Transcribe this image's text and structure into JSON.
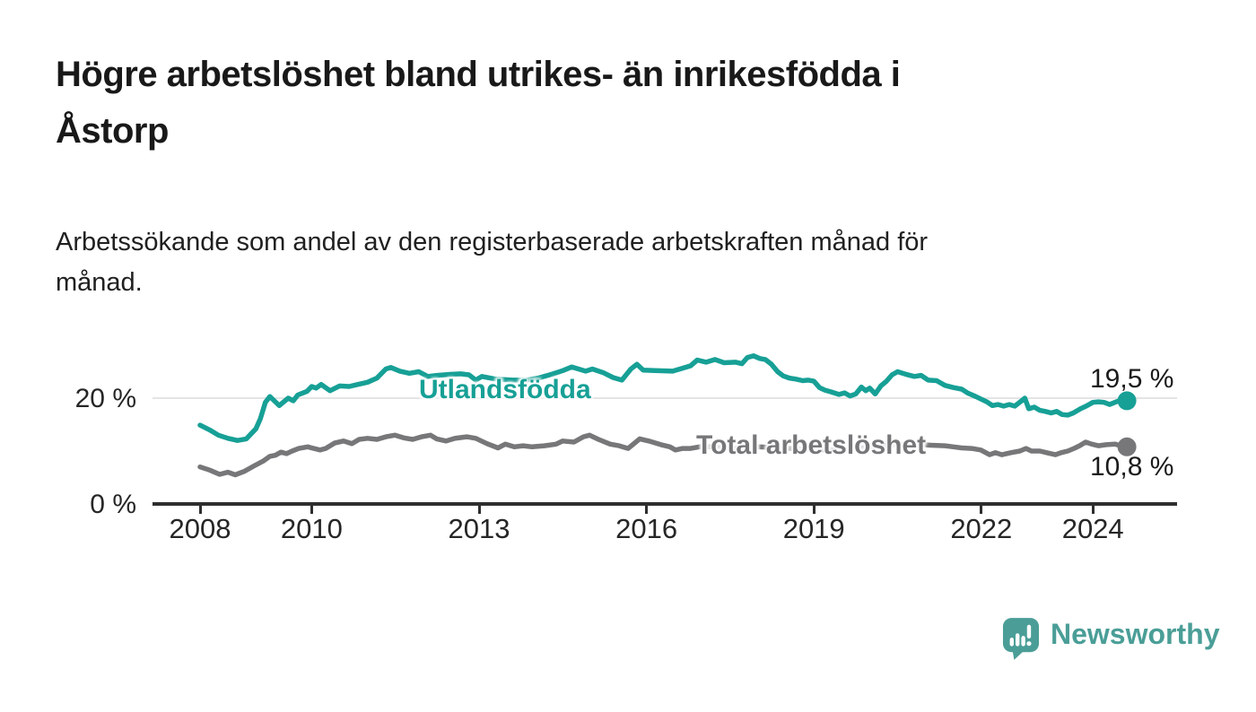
{
  "header": {
    "title": "Högre arbetslöshet bland utrikes- än inrikesfödda i Åstorp",
    "title_lines": [
      "Högre arbetslöshet bland utrikes- än inrikesfödda i",
      "Åstorp"
    ],
    "subtitle": "Arbetssökande som andel av den registerbaserade arbetskraften månad för månad.",
    "subtitle_lines": [
      "Arbetssökande som andel av den registerbaserade arbetskraften månad för",
      "månad."
    ]
  },
  "colors": {
    "foreign_born_line": "#17a096",
    "total_line": "#77777a",
    "axis": "#2e2e2e",
    "gridline": "#e4e4e4",
    "text": "#191919",
    "brand_teal": "#4a9e97"
  },
  "chart_data": {
    "type": "line",
    "title": "Högre arbetslöshet bland utrikes- än inrikesfödda i Åstorp",
    "subtitle": "Arbetssökande som andel av den registerbaserade arbetskraften månad för månad.",
    "xlabel": "",
    "ylabel": "",
    "x_unit": "decimal_year",
    "y_unit": "percent",
    "xlim": [
      2007.2,
      2025.5
    ],
    "ylim": [
      0,
      30
    ],
    "grid": "horizontal-at-20-only",
    "legend_position": "inline-labels-on-lines",
    "x_ticks": [
      2008,
      2010,
      2013,
      2016,
      2019,
      2022,
      2024
    ],
    "y_ticks": [
      {
        "value": 20,
        "label": "20 %",
        "gridline": true
      },
      {
        "value": 0,
        "label": "0 %",
        "gridline": false
      }
    ],
    "series": [
      {
        "name": "Utlandsfödda",
        "color": "#17a096",
        "end_label": "19,5 %",
        "end_value": 19.5,
        "points": [
          [
            2008.0,
            14.9
          ],
          [
            2008.17,
            14.0
          ],
          [
            2008.33,
            13.0
          ],
          [
            2008.5,
            12.4
          ],
          [
            2008.67,
            12.0
          ],
          [
            2008.83,
            12.3
          ],
          [
            2009.0,
            14.2
          ],
          [
            2009.08,
            16.1
          ],
          [
            2009.17,
            19.2
          ],
          [
            2009.25,
            20.3
          ],
          [
            2009.42,
            18.6
          ],
          [
            2009.58,
            20.0
          ],
          [
            2009.67,
            19.5
          ],
          [
            2009.75,
            20.6
          ],
          [
            2009.92,
            21.3
          ],
          [
            2010.0,
            22.2
          ],
          [
            2010.08,
            21.9
          ],
          [
            2010.17,
            22.6
          ],
          [
            2010.33,
            21.4
          ],
          [
            2010.5,
            22.3
          ],
          [
            2010.67,
            22.2
          ],
          [
            2010.83,
            22.6
          ],
          [
            2011.0,
            23.0
          ],
          [
            2011.17,
            23.8
          ],
          [
            2011.33,
            25.5
          ],
          [
            2011.42,
            25.8
          ],
          [
            2011.58,
            25.1
          ],
          [
            2011.75,
            24.7
          ],
          [
            2011.92,
            25.0
          ],
          [
            2012.08,
            24.1
          ],
          [
            2012.25,
            24.3
          ],
          [
            2012.5,
            24.5
          ],
          [
            2012.67,
            24.6
          ],
          [
            2012.82,
            24.4
          ],
          [
            2012.94,
            23.4
          ],
          [
            2013.05,
            24.1
          ],
          [
            2013.3,
            23.6
          ],
          [
            2013.6,
            23.4
          ],
          [
            2013.85,
            23.4
          ],
          [
            2014.06,
            23.8
          ],
          [
            2014.3,
            24.5
          ],
          [
            2014.5,
            25.2
          ],
          [
            2014.66,
            25.9
          ],
          [
            2014.91,
            25.1
          ],
          [
            2015.03,
            25.5
          ],
          [
            2015.23,
            24.8
          ],
          [
            2015.4,
            23.9
          ],
          [
            2015.56,
            23.4
          ],
          [
            2015.72,
            25.5
          ],
          [
            2015.83,
            26.4
          ],
          [
            2015.94,
            25.3
          ],
          [
            2016.15,
            25.2
          ],
          [
            2016.47,
            25.1
          ],
          [
            2016.79,
            26.1
          ],
          [
            2016.91,
            27.2
          ],
          [
            2017.07,
            26.8
          ],
          [
            2017.23,
            27.3
          ],
          [
            2017.39,
            26.7
          ],
          [
            2017.6,
            26.8
          ],
          [
            2017.71,
            26.5
          ],
          [
            2017.81,
            27.7
          ],
          [
            2017.92,
            28.0
          ],
          [
            2018.03,
            27.5
          ],
          [
            2018.13,
            27.3
          ],
          [
            2018.24,
            26.4
          ],
          [
            2018.35,
            25.0
          ],
          [
            2018.45,
            24.2
          ],
          [
            2018.56,
            23.8
          ],
          [
            2018.68,
            23.6
          ],
          [
            2018.8,
            23.3
          ],
          [
            2018.9,
            23.4
          ],
          [
            2019.0,
            23.2
          ],
          [
            2019.1,
            22.0
          ],
          [
            2019.2,
            21.5
          ],
          [
            2019.3,
            21.2
          ],
          [
            2019.45,
            20.7
          ],
          [
            2019.55,
            21.0
          ],
          [
            2019.65,
            20.4
          ],
          [
            2019.75,
            20.8
          ],
          [
            2019.85,
            22.1
          ],
          [
            2019.93,
            21.4
          ],
          [
            2020.0,
            21.9
          ],
          [
            2020.1,
            20.8
          ],
          [
            2020.2,
            22.3
          ],
          [
            2020.3,
            23.2
          ],
          [
            2020.4,
            24.4
          ],
          [
            2020.5,
            25.0
          ],
          [
            2020.65,
            24.5
          ],
          [
            2020.8,
            24.1
          ],
          [
            2020.92,
            24.3
          ],
          [
            2021.05,
            23.4
          ],
          [
            2021.2,
            23.3
          ],
          [
            2021.35,
            22.4
          ],
          [
            2021.5,
            22.0
          ],
          [
            2021.65,
            21.7
          ],
          [
            2021.75,
            21.0
          ],
          [
            2021.9,
            20.3
          ],
          [
            2022.0,
            19.8
          ],
          [
            2022.1,
            19.3
          ],
          [
            2022.2,
            18.6
          ],
          [
            2022.3,
            18.8
          ],
          [
            2022.4,
            18.5
          ],
          [
            2022.5,
            18.8
          ],
          [
            2022.6,
            18.5
          ],
          [
            2022.7,
            19.3
          ],
          [
            2022.78,
            20.0
          ],
          [
            2022.85,
            18.0
          ],
          [
            2022.95,
            18.3
          ],
          [
            2023.05,
            17.7
          ],
          [
            2023.15,
            17.5
          ],
          [
            2023.25,
            17.2
          ],
          [
            2023.35,
            17.5
          ],
          [
            2023.45,
            16.9
          ],
          [
            2023.55,
            16.8
          ],
          [
            2023.65,
            17.2
          ],
          [
            2023.78,
            18.0
          ],
          [
            2023.88,
            18.5
          ],
          [
            2024.0,
            19.2
          ],
          [
            2024.1,
            19.3
          ],
          [
            2024.2,
            19.2
          ],
          [
            2024.3,
            18.8
          ],
          [
            2024.42,
            19.3
          ],
          [
            2024.52,
            19.7
          ],
          [
            2024.61,
            19.5
          ]
        ]
      },
      {
        "name": "Total arbetslöshet",
        "color": "#77777a",
        "end_label": "10,8 %",
        "end_value": 10.8,
        "points": [
          [
            2008.0,
            7.0
          ],
          [
            2008.17,
            6.4
          ],
          [
            2008.35,
            5.6
          ],
          [
            2008.5,
            6.0
          ],
          [
            2008.63,
            5.5
          ],
          [
            2008.8,
            6.2
          ],
          [
            2008.97,
            7.2
          ],
          [
            2009.13,
            8.1
          ],
          [
            2009.25,
            9.0
          ],
          [
            2009.35,
            9.2
          ],
          [
            2009.45,
            9.8
          ],
          [
            2009.55,
            9.5
          ],
          [
            2009.65,
            10.0
          ],
          [
            2009.77,
            10.5
          ],
          [
            2009.93,
            10.8
          ],
          [
            2010.04,
            10.5
          ],
          [
            2010.15,
            10.2
          ],
          [
            2010.25,
            10.5
          ],
          [
            2010.41,
            11.5
          ],
          [
            2010.57,
            11.9
          ],
          [
            2010.72,
            11.4
          ],
          [
            2010.85,
            12.2
          ],
          [
            2011.0,
            12.4
          ],
          [
            2011.17,
            12.2
          ],
          [
            2011.33,
            12.7
          ],
          [
            2011.49,
            13.0
          ],
          [
            2011.65,
            12.5
          ],
          [
            2011.81,
            12.2
          ],
          [
            2011.97,
            12.7
          ],
          [
            2012.13,
            13.0
          ],
          [
            2012.24,
            12.3
          ],
          [
            2012.41,
            11.9
          ],
          [
            2012.57,
            12.4
          ],
          [
            2012.78,
            12.7
          ],
          [
            2012.94,
            12.4
          ],
          [
            2013.14,
            11.4
          ],
          [
            2013.34,
            10.6
          ],
          [
            2013.47,
            11.3
          ],
          [
            2013.63,
            10.8
          ],
          [
            2013.79,
            11.0
          ],
          [
            2013.95,
            10.8
          ],
          [
            2014.17,
            11.0
          ],
          [
            2014.38,
            11.3
          ],
          [
            2014.5,
            11.9
          ],
          [
            2014.7,
            11.7
          ],
          [
            2014.87,
            12.7
          ],
          [
            2014.98,
            13.0
          ],
          [
            2015.14,
            12.2
          ],
          [
            2015.35,
            11.3
          ],
          [
            2015.51,
            11.0
          ],
          [
            2015.67,
            10.5
          ],
          [
            2015.88,
            12.3
          ],
          [
            2016.04,
            11.9
          ],
          [
            2016.26,
            11.2
          ],
          [
            2016.42,
            10.8
          ],
          [
            2016.52,
            10.2
          ],
          [
            2016.65,
            10.5
          ],
          [
            2016.79,
            10.5
          ],
          [
            2016.95,
            10.8
          ],
          [
            2017.2,
            10.8
          ],
          [
            2017.6,
            10.5
          ],
          [
            2018.0,
            10.8
          ],
          [
            2018.4,
            10.6
          ],
          [
            2018.8,
            10.4
          ],
          [
            2019.2,
            10.2
          ],
          [
            2019.6,
            10.3
          ],
          [
            2020.0,
            10.8
          ],
          [
            2020.4,
            11.2
          ],
          [
            2020.8,
            11.3
          ],
          [
            2021.1,
            11.1
          ],
          [
            2021.35,
            11.0
          ],
          [
            2021.5,
            10.8
          ],
          [
            2021.65,
            10.6
          ],
          [
            2021.83,
            10.5
          ],
          [
            2021.99,
            10.2
          ],
          [
            2022.15,
            9.3
          ],
          [
            2022.25,
            9.7
          ],
          [
            2022.37,
            9.3
          ],
          [
            2022.53,
            9.7
          ],
          [
            2022.69,
            10.0
          ],
          [
            2022.8,
            10.5
          ],
          [
            2022.9,
            10.0
          ],
          [
            2023.05,
            10.0
          ],
          [
            2023.17,
            9.7
          ],
          [
            2023.33,
            9.3
          ],
          [
            2023.43,
            9.7
          ],
          [
            2023.55,
            10.0
          ],
          [
            2023.66,
            10.5
          ],
          [
            2023.76,
            11.0
          ],
          [
            2023.87,
            11.7
          ],
          [
            2023.98,
            11.3
          ],
          [
            2024.1,
            11.0
          ],
          [
            2024.24,
            11.2
          ],
          [
            2024.4,
            11.3
          ],
          [
            2024.5,
            11.0
          ],
          [
            2024.61,
            10.8
          ]
        ]
      }
    ]
  },
  "branding": {
    "logo_text": "Newsworthy",
    "logo_icon": "newsworthy-speech-bubble-bar-chart-icon",
    "logo_color": "#4a9e97"
  }
}
